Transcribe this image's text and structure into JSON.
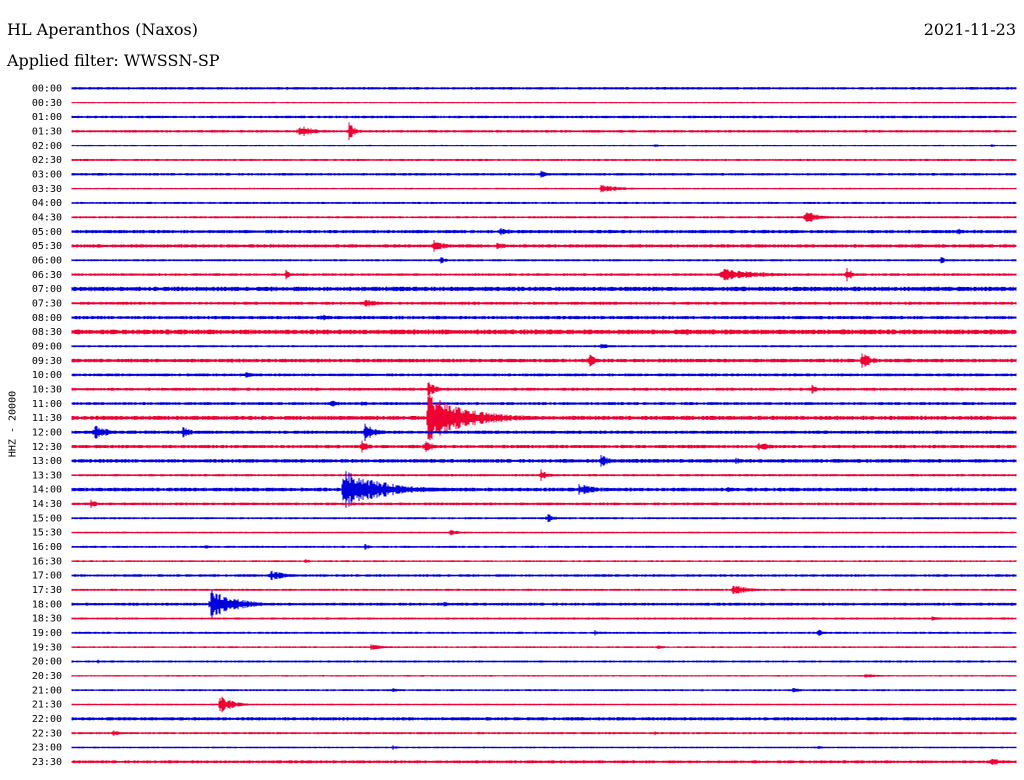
{
  "header": {
    "title": "HL Aperanthos (Naxos)",
    "date": "2021-11-23",
    "filter": "Applied filter: WWSSN-SP",
    "channel": "HHZ - 20000"
  },
  "colors": {
    "trace_a": "#0000dd",
    "trace_b": "#ee0033"
  },
  "chart_data": {
    "type": "line",
    "title": "HL Aperanthos (Naxos)",
    "subtitle": "Applied filter: WWSSN-SP",
    "ylabel": "HHZ - 20000",
    "xlabel": "",
    "grid": false,
    "legend": "none",
    "x_range_minutes": [
      0,
      30
    ],
    "rows": [
      {
        "label": "00:00",
        "color": "#0000dd",
        "noise": 1.0,
        "events": []
      },
      {
        "label": "00:30",
        "color": "#ee0033",
        "noise": 0.4,
        "events": []
      },
      {
        "label": "01:00",
        "color": "#0000dd",
        "noise": 1.0,
        "events": []
      },
      {
        "label": "01:30",
        "color": "#ee0033",
        "noise": 1.0,
        "events": [
          {
            "t": 7.2,
            "amp": 7,
            "dur": 0.8
          },
          {
            "t": 8.8,
            "amp": 9,
            "dur": 0.4
          }
        ]
      },
      {
        "label": "02:00",
        "color": "#0000dd",
        "noise": 0.4,
        "events": [
          {
            "t": 18.5,
            "amp": 2,
            "dur": 0.3
          },
          {
            "t": 29.2,
            "amp": 2,
            "dur": 0.2
          }
        ]
      },
      {
        "label": "02:30",
        "color": "#ee0033",
        "noise": 0.8,
        "events": []
      },
      {
        "label": "03:00",
        "color": "#0000dd",
        "noise": 1.0,
        "events": [
          {
            "t": 14.9,
            "amp": 7,
            "dur": 0.3
          }
        ]
      },
      {
        "label": "03:30",
        "color": "#ee0033",
        "noise": 0.5,
        "events": [
          {
            "t": 16.8,
            "amp": 4,
            "dur": 1.2
          }
        ]
      },
      {
        "label": "04:00",
        "color": "#0000dd",
        "noise": 0.8,
        "events": []
      },
      {
        "label": "04:30",
        "color": "#ee0033",
        "noise": 0.8,
        "events": [
          {
            "t": 23.3,
            "amp": 7,
            "dur": 0.8
          }
        ]
      },
      {
        "label": "05:00",
        "color": "#0000dd",
        "noise": 1.4,
        "events": [
          {
            "t": 13.6,
            "amp": 4,
            "dur": 0.8
          },
          {
            "t": 28.1,
            "amp": 4,
            "dur": 0.4
          }
        ]
      },
      {
        "label": "05:30",
        "color": "#ee0033",
        "noise": 1.4,
        "events": [
          {
            "t": 11.5,
            "amp": 9,
            "dur": 0.5
          },
          {
            "t": 13.5,
            "amp": 4,
            "dur": 0.6
          }
        ]
      },
      {
        "label": "06:00",
        "color": "#0000dd",
        "noise": 0.8,
        "events": [
          {
            "t": 11.7,
            "amp": 4,
            "dur": 0.3
          },
          {
            "t": 27.6,
            "amp": 4,
            "dur": 0.3
          }
        ]
      },
      {
        "label": "06:30",
        "color": "#ee0033",
        "noise": 1.0,
        "events": [
          {
            "t": 6.8,
            "amp": 5,
            "dur": 0.3
          },
          {
            "t": 20.6,
            "amp": 6,
            "dur": 2.5
          },
          {
            "t": 24.6,
            "amp": 8,
            "dur": 0.4
          }
        ]
      },
      {
        "label": "07:00",
        "color": "#0000dd",
        "noise": 2.0,
        "events": []
      },
      {
        "label": "07:30",
        "color": "#ee0033",
        "noise": 1.2,
        "events": [
          {
            "t": 9.3,
            "amp": 4,
            "dur": 1.0
          }
        ]
      },
      {
        "label": "08:00",
        "color": "#0000dd",
        "noise": 1.4,
        "events": [
          {
            "t": 7.9,
            "amp": 3,
            "dur": 1.3
          }
        ]
      },
      {
        "label": "08:30",
        "color": "#ee0033",
        "noise": 2.2,
        "events": [
          {
            "t": 19.5,
            "amp": 3,
            "dur": 0.8
          }
        ]
      },
      {
        "label": "09:00",
        "color": "#0000dd",
        "noise": 0.8,
        "events": [
          {
            "t": 16.8,
            "amp": 3,
            "dur": 0.6
          }
        ]
      },
      {
        "label": "09:30",
        "color": "#ee0033",
        "noise": 1.6,
        "events": [
          {
            "t": 16.4,
            "amp": 9,
            "dur": 0.4
          },
          {
            "t": 25.1,
            "amp": 11,
            "dur": 0.5
          }
        ]
      },
      {
        "label": "10:00",
        "color": "#0000dd",
        "noise": 1.2,
        "events": [
          {
            "t": 5.5,
            "amp": 4,
            "dur": 0.4
          }
        ]
      },
      {
        "label": "10:30",
        "color": "#ee0033",
        "noise": 1.2,
        "events": [
          {
            "t": 11.3,
            "amp": 9,
            "dur": 0.5
          },
          {
            "t": 23.5,
            "amp": 5,
            "dur": 0.4
          }
        ]
      },
      {
        "label": "11:00",
        "color": "#0000dd",
        "noise": 1.2,
        "events": [
          {
            "t": 8.2,
            "amp": 5,
            "dur": 0.5
          },
          {
            "t": 9.2,
            "amp": 4,
            "dur": 0.3
          }
        ]
      },
      {
        "label": "11:30",
        "color": "#ee0033",
        "noise": 1.8,
        "events": [
          {
            "t": 11.3,
            "amp": 24,
            "dur": 2.5
          },
          {
            "t": 19.5,
            "amp": 4,
            "dur": 0.4
          }
        ]
      },
      {
        "label": "12:00",
        "color": "#0000dd",
        "noise": 1.4,
        "events": [
          {
            "t": 0.7,
            "amp": 8,
            "dur": 0.8
          },
          {
            "t": 3.5,
            "amp": 6,
            "dur": 0.6
          },
          {
            "t": 9.3,
            "amp": 10,
            "dur": 0.6
          }
        ]
      },
      {
        "label": "12:30",
        "color": "#ee0033",
        "noise": 1.4,
        "events": [
          {
            "t": 9.2,
            "amp": 7,
            "dur": 0.4
          },
          {
            "t": 11.2,
            "amp": 7,
            "dur": 0.5
          },
          {
            "t": 21.8,
            "amp": 5,
            "dur": 0.8
          }
        ]
      },
      {
        "label": "13:00",
        "color": "#0000dd",
        "noise": 1.6,
        "events": [
          {
            "t": 16.8,
            "amp": 7,
            "dur": 0.6
          },
          {
            "t": 21.1,
            "amp": 3,
            "dur": 0.5
          }
        ]
      },
      {
        "label": "13:30",
        "color": "#ee0033",
        "noise": 0.9,
        "events": [
          {
            "t": 14.9,
            "amp": 6,
            "dur": 0.4
          }
        ]
      },
      {
        "label": "14:00",
        "color": "#0000dd",
        "noise": 1.6,
        "events": [
          {
            "t": 8.6,
            "amp": 20,
            "dur": 2.5
          },
          {
            "t": 16.1,
            "amp": 5,
            "dur": 1.5
          },
          {
            "t": 20.8,
            "amp": 3,
            "dur": 0.3
          }
        ]
      },
      {
        "label": "14:30",
        "color": "#ee0033",
        "noise": 1.1,
        "events": [
          {
            "t": 0.6,
            "amp": 4,
            "dur": 0.5
          }
        ]
      },
      {
        "label": "15:00",
        "color": "#0000dd",
        "noise": 0.8,
        "events": [
          {
            "t": 15.1,
            "amp": 5,
            "dur": 0.4
          }
        ]
      },
      {
        "label": "15:30",
        "color": "#ee0033",
        "noise": 0.6,
        "events": [
          {
            "t": 12.0,
            "amp": 3,
            "dur": 0.7
          }
        ]
      },
      {
        "label": "16:00",
        "color": "#0000dd",
        "noise": 0.8,
        "events": [
          {
            "t": 4.2,
            "amp": 3,
            "dur": 0.3
          },
          {
            "t": 9.3,
            "amp": 3,
            "dur": 0.3
          }
        ]
      },
      {
        "label": "16:30",
        "color": "#ee0033",
        "noise": 0.6,
        "events": [
          {
            "t": 7.4,
            "amp": 2,
            "dur": 0.4
          }
        ]
      },
      {
        "label": "17:00",
        "color": "#0000dd",
        "noise": 1.0,
        "events": [
          {
            "t": 6.3,
            "amp": 5,
            "dur": 1.0
          }
        ]
      },
      {
        "label": "17:30",
        "color": "#ee0033",
        "noise": 0.8,
        "events": [
          {
            "t": 21.0,
            "amp": 5,
            "dur": 1.0
          }
        ]
      },
      {
        "label": "18:00",
        "color": "#0000dd",
        "noise": 1.2,
        "events": [
          {
            "t": 4.4,
            "amp": 16,
            "dur": 1.5
          },
          {
            "t": 11.8,
            "amp": 3,
            "dur": 0.3
          }
        ]
      },
      {
        "label": "18:30",
        "color": "#ee0033",
        "noise": 0.8,
        "events": [
          {
            "t": 27.3,
            "amp": 2,
            "dur": 0.8
          }
        ]
      },
      {
        "label": "19:00",
        "color": "#0000dd",
        "noise": 0.8,
        "events": [
          {
            "t": 16.6,
            "amp": 3,
            "dur": 0.3
          },
          {
            "t": 23.7,
            "amp": 4,
            "dur": 0.3
          }
        ]
      },
      {
        "label": "19:30",
        "color": "#ee0033",
        "noise": 0.6,
        "events": [
          {
            "t": 9.5,
            "amp": 4,
            "dur": 0.5
          },
          {
            "t": 18.6,
            "amp": 3,
            "dur": 0.3
          }
        ]
      },
      {
        "label": "20:00",
        "color": "#0000dd",
        "noise": 0.8,
        "events": [
          {
            "t": 0.8,
            "amp": 2,
            "dur": 0.3
          }
        ]
      },
      {
        "label": "20:30",
        "color": "#ee0033",
        "noise": 0.5,
        "events": [
          {
            "t": 25.2,
            "amp": 2,
            "dur": 0.8
          }
        ]
      },
      {
        "label": "21:00",
        "color": "#0000dd",
        "noise": 0.7,
        "events": [
          {
            "t": 10.2,
            "amp": 3,
            "dur": 0.3
          },
          {
            "t": 22.9,
            "amp": 3,
            "dur": 0.4
          }
        ]
      },
      {
        "label": "21:30",
        "color": "#ee0033",
        "noise": 0.6,
        "events": [
          {
            "t": 4.7,
            "amp": 10,
            "dur": 0.7
          }
        ]
      },
      {
        "label": "22:00",
        "color": "#0000dd",
        "noise": 1.4,
        "events": []
      },
      {
        "label": "22:30",
        "color": "#ee0033",
        "noise": 0.8,
        "events": [
          {
            "t": 1.3,
            "amp": 3,
            "dur": 0.5
          },
          {
            "t": 18.5,
            "amp": 2,
            "dur": 0.3
          }
        ]
      },
      {
        "label": "23:00",
        "color": "#0000dd",
        "noise": 0.6,
        "events": [
          {
            "t": 10.2,
            "amp": 2,
            "dur": 0.3
          },
          {
            "t": 23.7,
            "amp": 2,
            "dur": 0.3
          }
        ]
      },
      {
        "label": "23:30",
        "color": "#ee0033",
        "noise": 1.2,
        "events": [
          {
            "t": 29.2,
            "amp": 4,
            "dur": 0.8
          }
        ]
      }
    ]
  }
}
